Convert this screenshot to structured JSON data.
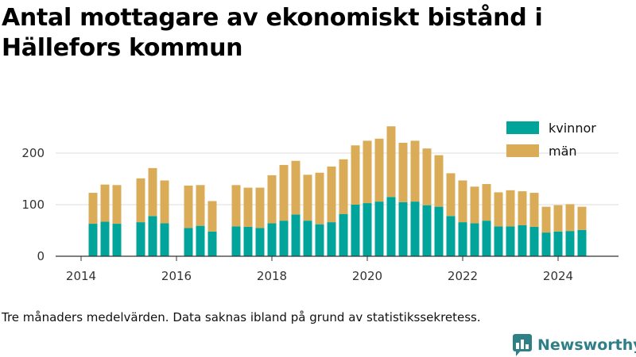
{
  "title": "Antal mottagare av ekonomiskt bistånd i Hällefors kommun",
  "note": "Tre månaders medelvärden. Data saknas ibland på grund av statistikssekretess.",
  "brand": {
    "name": "Newsworthy",
    "icon": "chat-bubble-bar-chart-icon",
    "color": "#2f7f86"
  },
  "chart_data": {
    "type": "bar",
    "stacked": true,
    "x_unit": "quarter",
    "x_ticks": [
      "2014",
      "2016",
      "2018",
      "2020",
      "2022",
      "2024"
    ],
    "y_ticks": [
      0,
      100,
      200
    ],
    "ylim": [
      0,
      260
    ],
    "grid": true,
    "legend": "top-right",
    "categories": [
      "2014 Q2",
      "2014 Q3",
      "2014 Q4",
      "2015 Q1",
      "2015 Q2",
      "2015 Q3",
      "2015 Q4",
      "2016 Q1",
      "2016 Q2",
      "2016 Q3",
      "2016 Q4",
      "2017 Q1",
      "2017 Q2",
      "2017 Q3",
      "2017 Q4",
      "2018 Q1",
      "2018 Q2",
      "2018 Q3",
      "2018 Q4",
      "2019 Q1",
      "2019 Q2",
      "2019 Q3",
      "2019 Q4",
      "2020 Q1",
      "2020 Q2",
      "2020 Q3",
      "2020 Q4",
      "2021 Q1",
      "2021 Q2",
      "2021 Q3",
      "2021 Q4",
      "2022 Q1",
      "2022 Q2",
      "2022 Q3",
      "2022 Q4",
      "2023 Q1",
      "2023 Q2",
      "2023 Q3",
      "2023 Q4",
      "2024 Q1",
      "2024 Q2",
      "2024 Q3"
    ],
    "series": [
      {
        "name": "kvinnor",
        "color": "#00a49a",
        "values": [
          63,
          67,
          63,
          null,
          66,
          78,
          64,
          null,
          55,
          59,
          48,
          null,
          58,
          57,
          55,
          64,
          69,
          81,
          69,
          62,
          66,
          82,
          100,
          103,
          106,
          115,
          105,
          106,
          99,
          96,
          78,
          66,
          64,
          69,
          58,
          58,
          60,
          57,
          46,
          48,
          49,
          51
        ]
      },
      {
        "name": "män",
        "color": "#dbac58",
        "values": [
          60,
          72,
          75,
          null,
          85,
          93,
          83,
          null,
          82,
          79,
          59,
          null,
          80,
          76,
          78,
          93,
          108,
          104,
          89,
          100,
          108,
          106,
          115,
          121,
          122,
          137,
          115,
          118,
          110,
          100,
          83,
          81,
          71,
          71,
          66,
          70,
          66,
          66,
          50,
          51,
          52,
          45
        ]
      }
    ]
  }
}
